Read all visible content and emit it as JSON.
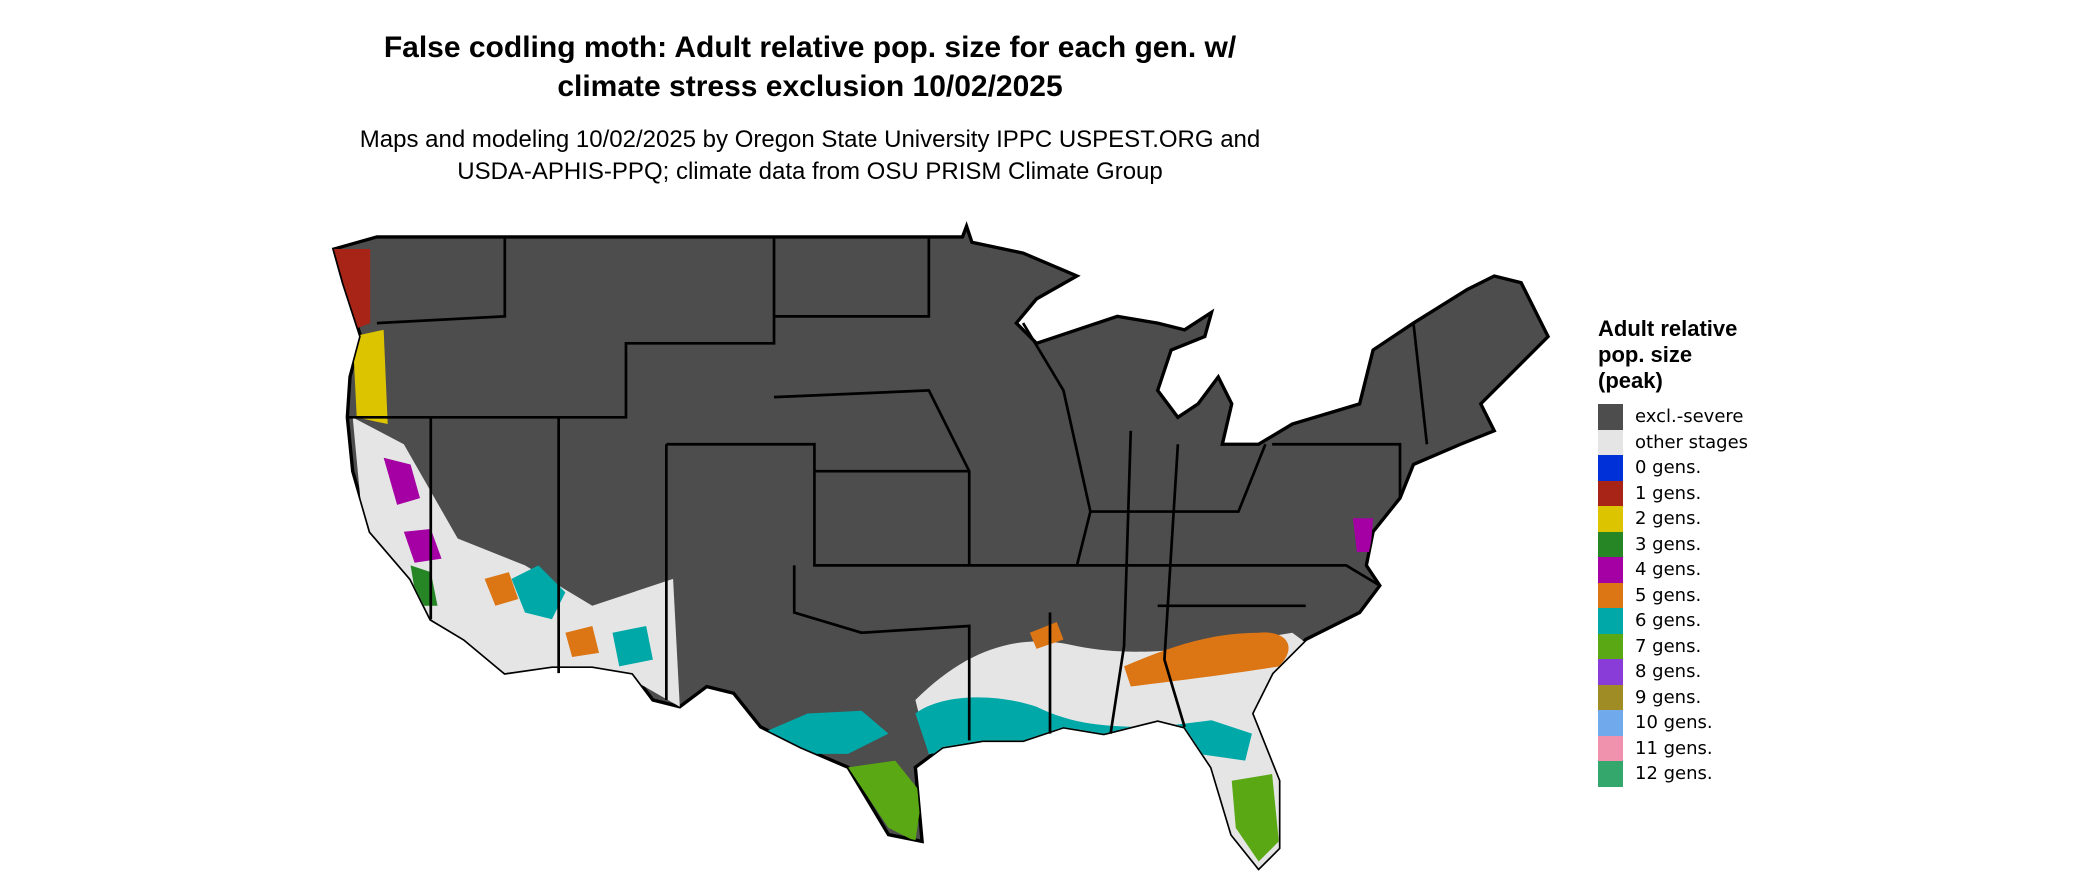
{
  "title": {
    "line1": "False codling moth: Adult relative pop. size for each gen. w/",
    "line2": "climate stress exclusion 10/02/2025"
  },
  "subtitle": {
    "line1": "Maps and modeling 10/02/2025 by Oregon State University IPPC USPEST.ORG and",
    "line2": "USDA-APHIS-PPQ; climate data from OSU PRISM Climate Group"
  },
  "legend": {
    "title_lines": [
      "Adult relative",
      "pop. size",
      "(peak)"
    ],
    "items": [
      {
        "label": "excl.-severe",
        "color": "#4d4d4d"
      },
      {
        "label": "other stages",
        "color": "#e5e5e5"
      },
      {
        "label": "0 gens.",
        "color": "#0030d8"
      },
      {
        "label": "1 gens.",
        "color": "#a82416"
      },
      {
        "label": "2 gens.",
        "color": "#dcc400"
      },
      {
        "label": "3 gens.",
        "color": "#268626"
      },
      {
        "label": "4 gens.",
        "color": "#a400a4"
      },
      {
        "label": "5 gens.",
        "color": "#dc7514"
      },
      {
        "label": "6 gens.",
        "color": "#00a8a8"
      },
      {
        "label": "7 gens.",
        "color": "#5aa814"
      },
      {
        "label": "8 gens.",
        "color": "#8a3cd8"
      },
      {
        "label": "9 gens.",
        "color": "#a08c24"
      },
      {
        "label": "10 gens.",
        "color": "#70aaec"
      },
      {
        "label": "11 gens.",
        "color": "#f092ae"
      },
      {
        "label": "12 gens.",
        "color": "#34a86c"
      }
    ]
  }
}
